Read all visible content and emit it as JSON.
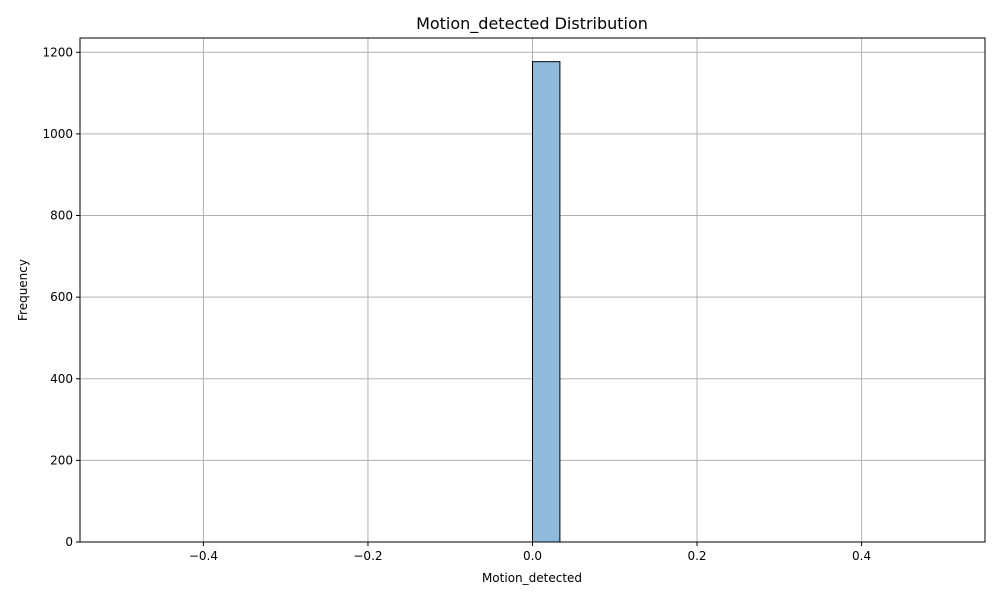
{
  "chart_data": {
    "type": "bar",
    "title": "Motion_detected Distribution",
    "xlabel": "Motion_detected",
    "ylabel": "Frequency",
    "xlim": [
      -0.55,
      0.55
    ],
    "ylim": [
      0,
      1235
    ],
    "bin_range": [
      -0.5,
      0.5
    ],
    "bin_count": 30,
    "bars": [
      {
        "x_start": 0.0,
        "x_end": 0.0333,
        "value": 1177
      }
    ],
    "x_ticks": [
      {
        "value": -0.4,
        "label": "−0.4"
      },
      {
        "value": -0.2,
        "label": "−0.2"
      },
      {
        "value": 0.0,
        "label": "0.0"
      },
      {
        "value": 0.2,
        "label": "0.2"
      },
      {
        "value": 0.4,
        "label": "0.4"
      }
    ],
    "y_ticks": [
      {
        "value": 0,
        "label": "0"
      },
      {
        "value": 200,
        "label": "200"
      },
      {
        "value": 400,
        "label": "400"
      },
      {
        "value": 600,
        "label": "600"
      },
      {
        "value": 800,
        "label": "800"
      },
      {
        "value": 1000,
        "label": "1000"
      },
      {
        "value": 1200,
        "label": "1200"
      }
    ],
    "grid": true,
    "legend": false,
    "colors": {
      "bar_fill": "#8fbadb",
      "bar_edge": "#000000",
      "grid": "#b0b0b0"
    }
  }
}
